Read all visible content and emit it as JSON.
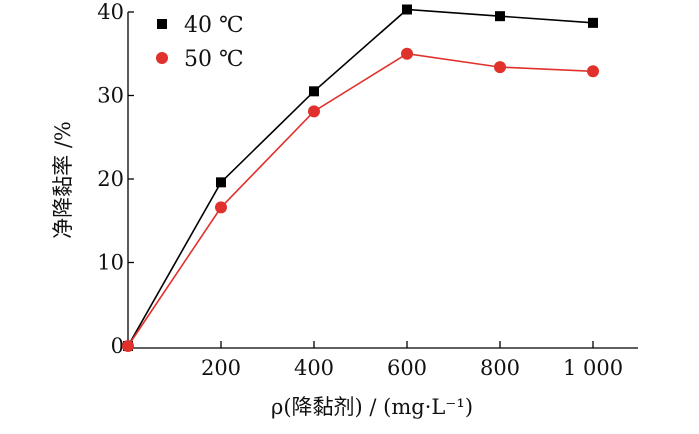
{
  "chart_data": {
    "type": "line",
    "xlabel": "ρ(降黏剂) / (mg·L⁻¹)",
    "ylabel": "净降黏率 /%",
    "xlim": [
      0,
      1000
    ],
    "ylim": [
      0,
      40
    ],
    "xticks": [
      200,
      400,
      600,
      800,
      1000
    ],
    "xtick_labels": [
      "200",
      "400",
      "600",
      "800",
      "1 000"
    ],
    "yticks": [
      0,
      10,
      20,
      30,
      40
    ],
    "ytick_labels": [
      "0",
      "10",
      "20",
      "30",
      "40"
    ],
    "grid": false,
    "legend_position": "top-left",
    "x": [
      0,
      200,
      400,
      600,
      800,
      1000
    ],
    "series": [
      {
        "name": "40 ℃",
        "marker": "square",
        "color": "#000000",
        "values": [
          0,
          19.6,
          30.5,
          40.3,
          39.5,
          38.7
        ]
      },
      {
        "name": "50 ℃",
        "marker": "circle",
        "color": "#e0312c",
        "values": [
          0,
          16.6,
          28.1,
          35.0,
          33.4,
          32.9
        ]
      }
    ]
  }
}
